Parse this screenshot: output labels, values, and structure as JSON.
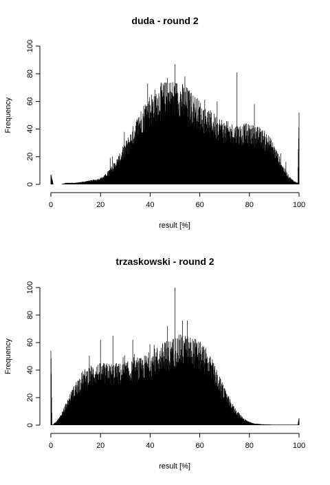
{
  "chart_data": [
    {
      "type": "bar",
      "title": "duda - round 2",
      "xlabel": "result [%]",
      "ylabel": "Frequency",
      "xlim": [
        0,
        100
      ],
      "ylim": [
        0,
        100
      ],
      "xticks": [
        "0",
        "20",
        "40",
        "60",
        "80",
        "100"
      ],
      "yticks": [
        "0",
        "20",
        "40",
        "60",
        "80",
        "100"
      ],
      "bar_color": "#000000",
      "profile": [
        [
          0,
          7
        ],
        [
          1,
          0
        ],
        [
          4,
          0
        ],
        [
          6,
          1
        ],
        [
          10,
          1
        ],
        [
          14,
          2
        ],
        [
          18,
          3
        ],
        [
          20,
          4
        ],
        [
          22,
          6
        ],
        [
          24,
          10
        ],
        [
          26,
          14
        ],
        [
          28,
          19
        ],
        [
          30,
          25
        ],
        [
          32,
          31
        ],
        [
          34,
          38
        ],
        [
          36,
          44
        ],
        [
          38,
          50
        ],
        [
          40,
          54
        ],
        [
          42,
          57
        ],
        [
          44,
          60
        ],
        [
          46,
          61
        ],
        [
          48,
          62
        ],
        [
          50,
          62
        ],
        [
          52,
          61
        ],
        [
          54,
          59
        ],
        [
          56,
          56
        ],
        [
          58,
          53
        ],
        [
          60,
          50
        ],
        [
          62,
          47
        ],
        [
          64,
          44
        ],
        [
          66,
          42
        ],
        [
          68,
          40
        ],
        [
          70,
          38
        ],
        [
          72,
          37
        ],
        [
          74,
          36
        ],
        [
          76,
          36
        ],
        [
          78,
          36
        ],
        [
          80,
          36
        ],
        [
          82,
          35
        ],
        [
          84,
          34
        ],
        [
          86,
          32
        ],
        [
          88,
          29
        ],
        [
          90,
          24
        ],
        [
          92,
          17
        ],
        [
          94,
          10
        ],
        [
          96,
          5
        ],
        [
          98,
          2
        ],
        [
          99.5,
          1
        ],
        [
          100,
          52
        ]
      ],
      "peaks": [
        [
          39,
          73
        ],
        [
          50,
          87
        ],
        [
          54,
          78
        ],
        [
          47,
          77
        ],
        [
          75,
          81
        ],
        [
          67,
          60
        ],
        [
          82,
          58
        ]
      ]
    },
    {
      "type": "bar",
      "title": "trzaskowski - round 2",
      "xlabel": "result [%]",
      "ylabel": "Frequency",
      "xlim": [
        0,
        100
      ],
      "ylim": [
        0,
        100
      ],
      "xticks": [
        "0",
        "20",
        "40",
        "60",
        "80",
        "100"
      ],
      "yticks": [
        "0",
        "20",
        "40",
        "60",
        "80",
        "100"
      ],
      "bar_color": "#000000",
      "profile": [
        [
          0,
          54
        ],
        [
          0.5,
          0
        ],
        [
          2,
          2
        ],
        [
          4,
          6
        ],
        [
          6,
          13
        ],
        [
          8,
          20
        ],
        [
          10,
          26
        ],
        [
          12,
          31
        ],
        [
          14,
          34
        ],
        [
          16,
          36
        ],
        [
          18,
          37
        ],
        [
          20,
          37
        ],
        [
          22,
          37
        ],
        [
          24,
          37
        ],
        [
          26,
          37
        ],
        [
          28,
          37
        ],
        [
          30,
          38
        ],
        [
          32,
          38
        ],
        [
          34,
          39
        ],
        [
          36,
          40
        ],
        [
          38,
          42
        ],
        [
          40,
          44
        ],
        [
          42,
          46
        ],
        [
          44,
          48
        ],
        [
          46,
          50
        ],
        [
          48,
          51
        ],
        [
          50,
          53
        ],
        [
          52,
          54
        ],
        [
          54,
          54
        ],
        [
          56,
          53
        ],
        [
          58,
          52
        ],
        [
          60,
          50
        ],
        [
          62,
          47
        ],
        [
          64,
          42
        ],
        [
          66,
          36
        ],
        [
          68,
          29
        ],
        [
          70,
          22
        ],
        [
          72,
          16
        ],
        [
          74,
          11
        ],
        [
          76,
          7
        ],
        [
          78,
          4
        ],
        [
          80,
          2
        ],
        [
          82,
          1
        ],
        [
          86,
          0.5
        ],
        [
          90,
          0.3
        ],
        [
          99.5,
          0.3
        ],
        [
          100,
          5
        ]
      ],
      "peaks": [
        [
          20,
          62
        ],
        [
          25,
          65
        ],
        [
          33,
          62
        ],
        [
          50,
          100
        ],
        [
          53,
          76
        ],
        [
          55,
          76
        ],
        [
          47,
          72
        ]
      ]
    }
  ]
}
